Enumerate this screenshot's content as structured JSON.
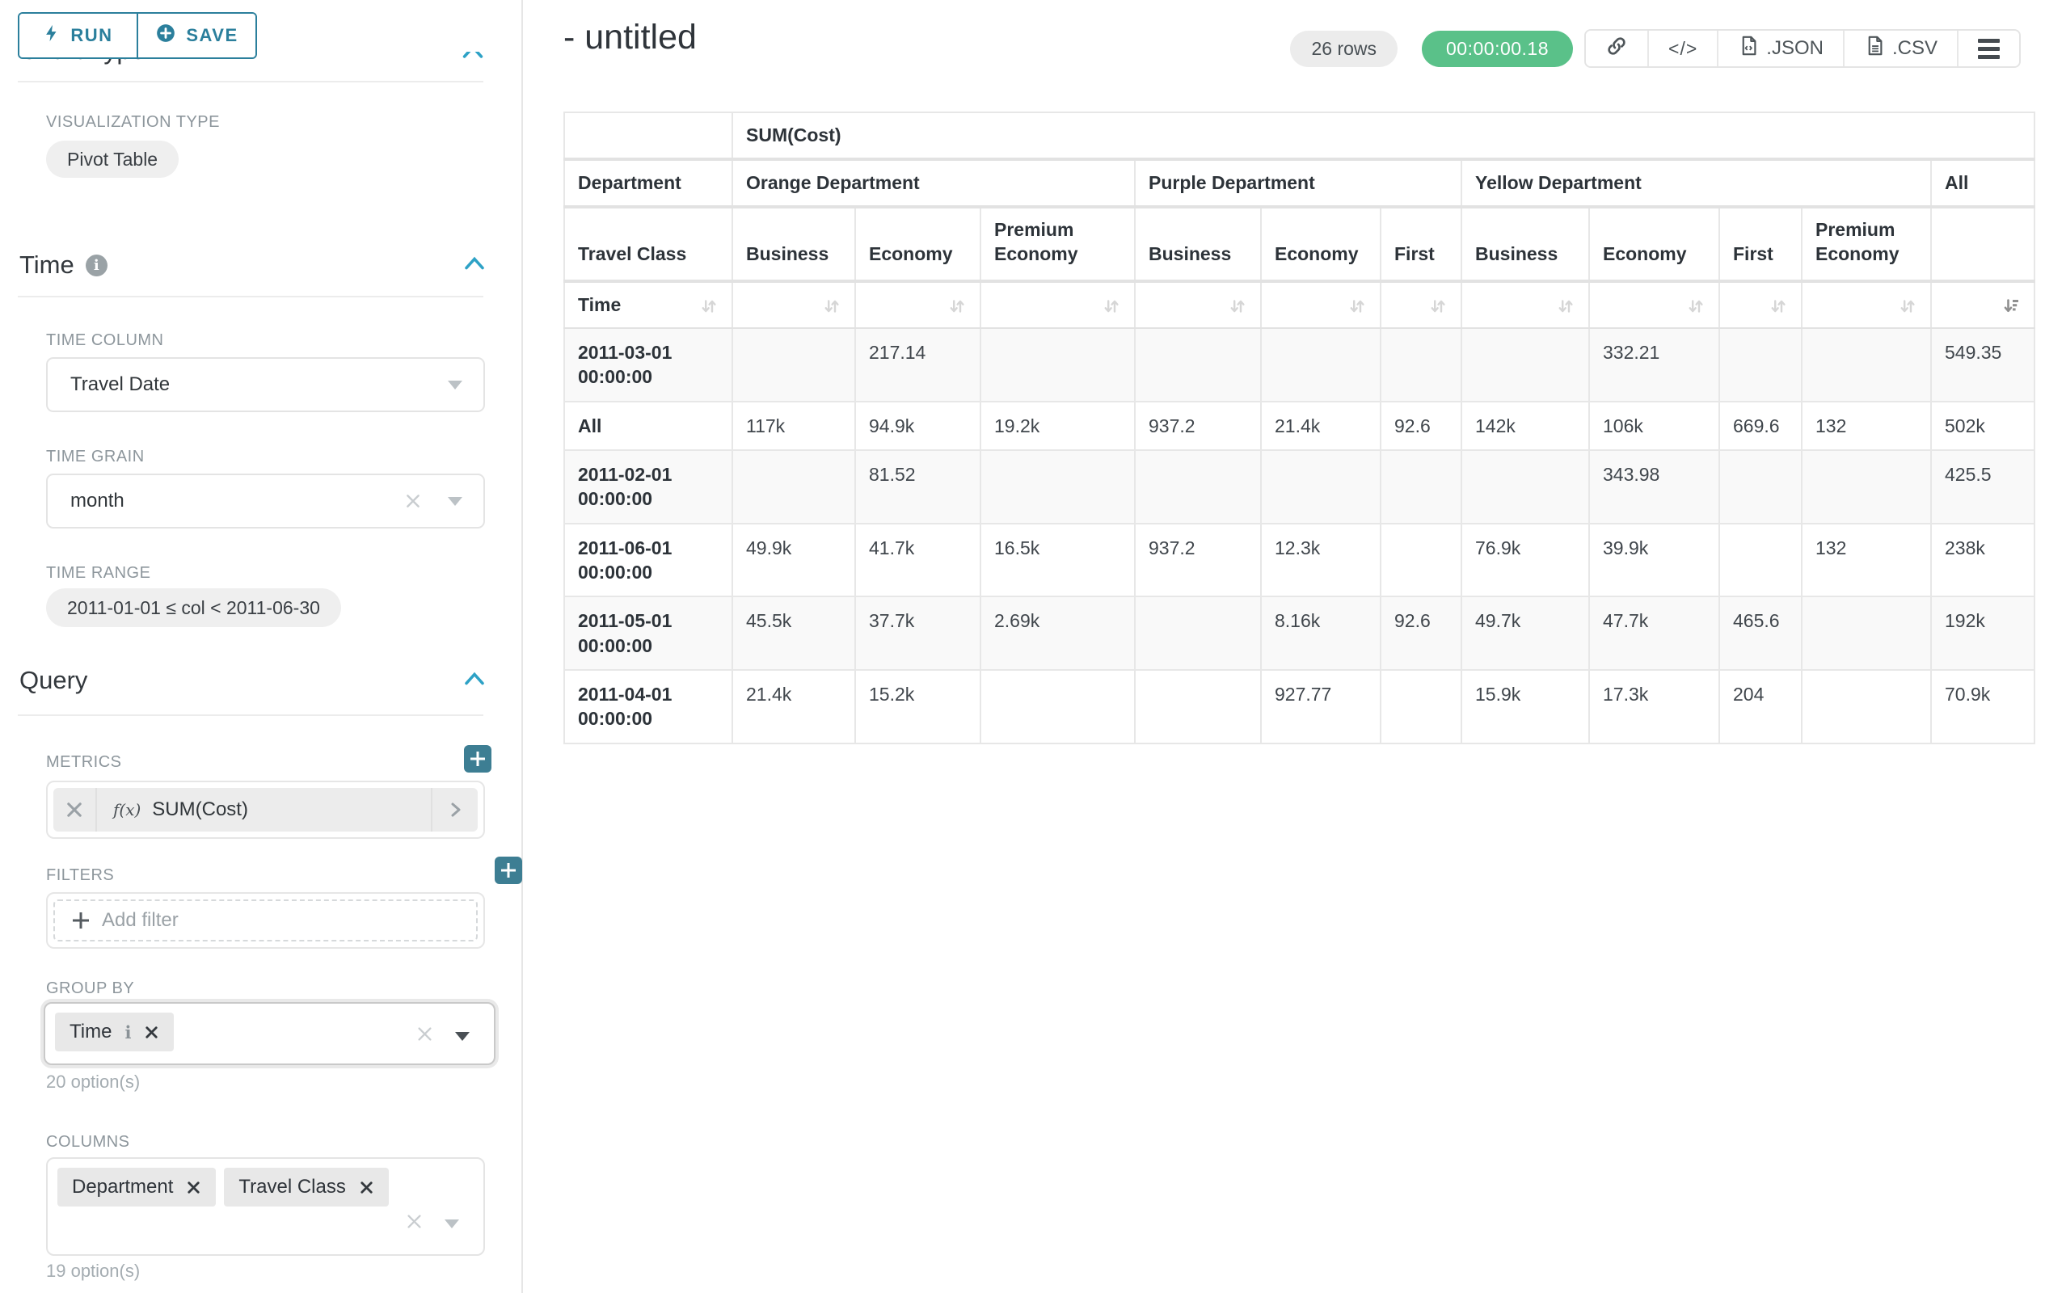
{
  "colors": {
    "accent_teal": "#2b7f9c",
    "add_button_teal": "#3d7e93",
    "chevron_blue": "#2ea2c6",
    "timer_green": "#5ac189"
  },
  "panel": {
    "run_label": "RUN",
    "save_label": "SAVE",
    "chart_type_heading": "Chart Type",
    "viz_label": "VISUALIZATION TYPE",
    "viz_value": "Pivot Table",
    "time": {
      "heading": "Time",
      "time_column_label": "TIME COLUMN",
      "time_column_value": "Travel Date",
      "time_grain_label": "TIME GRAIN",
      "time_grain_value": "month",
      "time_range_label": "TIME RANGE",
      "time_range_value": "2011-01-01 ≤ col < 2011-06-30"
    },
    "query": {
      "heading": "Query",
      "metrics_label": "METRICS",
      "metric_fx": "f(x)",
      "metric_value": "SUM(Cost)",
      "filters_label": "FILTERS",
      "add_filter_label": "Add filter",
      "group_by_label": "GROUP BY",
      "group_by_chip": "Time",
      "group_by_options": "20 option(s)",
      "columns_label": "COLUMNS",
      "columns_chip_1": "Department",
      "columns_chip_2": "Travel Class",
      "columns_options": "19 option(s)"
    }
  },
  "header": {
    "title": "- untitled",
    "rows_badge": "26 rows",
    "timer": "00:00:00.18",
    "code_label": "</>",
    "json_label": ".JSON",
    "csv_label": ".CSV"
  },
  "chart_data": {
    "type": "table",
    "metric_header": "SUM(Cost)",
    "department_row_label": "Department",
    "departments": [
      {
        "label": "Orange Department",
        "span": 3
      },
      {
        "label": "Purple Department",
        "span": 3
      },
      {
        "label": "Yellow Department",
        "span": 4
      },
      {
        "label": "All",
        "span": 1
      }
    ],
    "travel_class_row_label": "Travel Class",
    "class_cols": [
      "Business",
      "Economy",
      "Premium Economy",
      "Business",
      "Economy",
      "First",
      "Business",
      "Economy",
      "First",
      "Premium Economy"
    ],
    "time_row_label": "Time",
    "rows": [
      {
        "label": "2011-03-01 00:00:00",
        "values": [
          "",
          "217.14",
          "",
          "",
          "",
          "",
          "",
          "332.21",
          "",
          "",
          "549.35"
        ]
      },
      {
        "label": "All",
        "values": [
          "117k",
          "94.9k",
          "19.2k",
          "937.2",
          "21.4k",
          "92.6",
          "142k",
          "106k",
          "669.6",
          "132",
          "502k"
        ]
      },
      {
        "label": "2011-02-01 00:00:00",
        "values": [
          "",
          "81.52",
          "",
          "",
          "",
          "",
          "",
          "343.98",
          "",
          "",
          "425.5"
        ]
      },
      {
        "label": "2011-06-01 00:00:00",
        "values": [
          "49.9k",
          "41.7k",
          "16.5k",
          "937.2",
          "12.3k",
          "",
          "76.9k",
          "39.9k",
          "",
          "132",
          "238k"
        ]
      },
      {
        "label": "2011-05-01 00:00:00",
        "values": [
          "45.5k",
          "37.7k",
          "2.69k",
          "",
          "8.16k",
          "92.6",
          "49.7k",
          "47.7k",
          "465.6",
          "",
          "192k"
        ]
      },
      {
        "label": "2011-04-01 00:00:00",
        "values": [
          "21.4k",
          "15.2k",
          "",
          "",
          "927.77",
          "",
          "15.9k",
          "17.3k",
          "204",
          "",
          "70.9k"
        ]
      }
    ]
  }
}
